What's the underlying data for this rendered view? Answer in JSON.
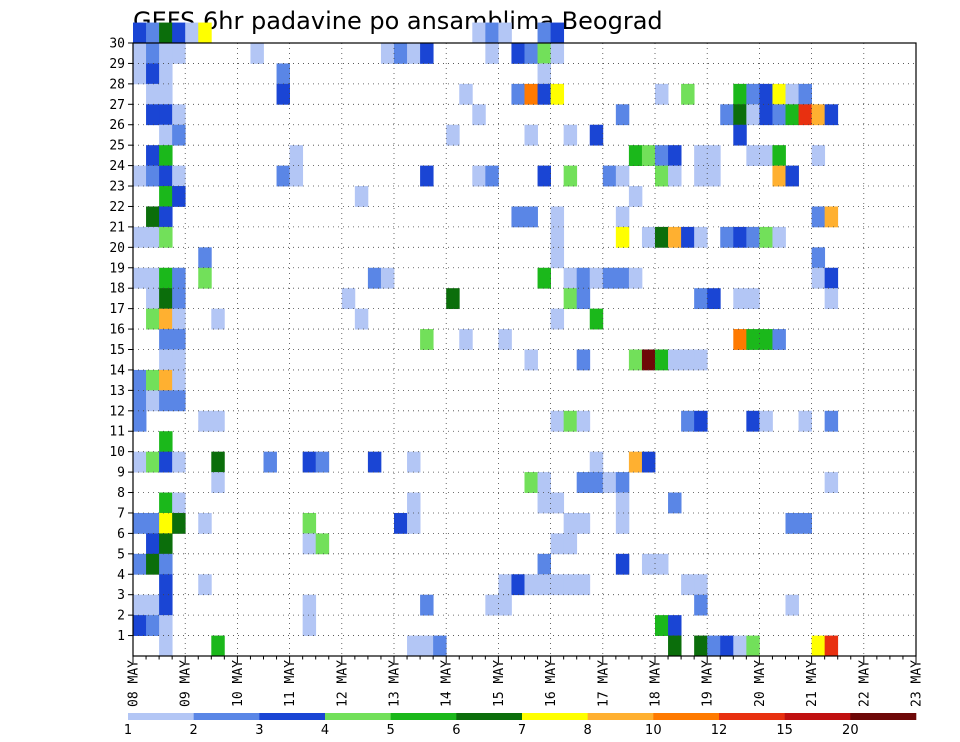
{
  "chart_data": {
    "type": "heatmap",
    "title": "GEFS 6hr padavine po ansamblima Beograd",
    "xlabel": "",
    "ylabel": "",
    "x_ticks": [
      "08 MAY",
      "09 MAY",
      "10 MAY",
      "11 MAY",
      "12 MAY",
      "13 MAY",
      "14 MAY",
      "15 MAY",
      "16 MAY",
      "17 MAY",
      "18 MAY",
      "19 MAY",
      "20 MAY",
      "21 MAY",
      "22 MAY",
      "23 MAY"
    ],
    "y_ticks": [
      "1",
      "2",
      "3",
      "4",
      "5",
      "6",
      "7",
      "8",
      "9",
      "10",
      "11",
      "12",
      "13",
      "14",
      "15",
      "16",
      "17",
      "18",
      "19",
      "20",
      "21",
      "22",
      "23",
      "24",
      "25",
      "26",
      "27",
      "28",
      "29",
      "30"
    ],
    "y_range": [
      0,
      30
    ],
    "n_time_steps": 60,
    "grid": true,
    "colorbar": {
      "levels": [
        "1",
        "2",
        "3",
        "4",
        "5",
        "6",
        "7",
        "8",
        "10",
        "12",
        "15",
        "20"
      ],
      "colors": [
        "#b3c6f5",
        "#5a86e6",
        "#1a45d4",
        "#72e05a",
        "#1bb81b",
        "#0b6e0b",
        "#ffff00",
        "#ffb030",
        "#ff7a00",
        "#e83010",
        "#c01010",
        "#6e0808"
      ]
    },
    "cells": [
      [
        30,
        0,
        2
      ],
      [
        30,
        1,
        1
      ],
      [
        30,
        2,
        5
      ],
      [
        30,
        3,
        2
      ],
      [
        30,
        4,
        0
      ],
      [
        30,
        5,
        6
      ],
      [
        30,
        26,
        0
      ],
      [
        30,
        27,
        1
      ],
      [
        30,
        28,
        0
      ],
      [
        30,
        31,
        1
      ],
      [
        30,
        32,
        2
      ],
      [
        29,
        0,
        0
      ],
      [
        29,
        1,
        1
      ],
      [
        29,
        2,
        0
      ],
      [
        29,
        3,
        0
      ],
      [
        29,
        9,
        0
      ],
      [
        29,
        19,
        0
      ],
      [
        29,
        20,
        1
      ],
      [
        29,
        21,
        0
      ],
      [
        29,
        22,
        2
      ],
      [
        29,
        27,
        0
      ],
      [
        29,
        29,
        2
      ],
      [
        29,
        30,
        1
      ],
      [
        29,
        31,
        3
      ],
      [
        29,
        32,
        0
      ],
      [
        28,
        0,
        0
      ],
      [
        28,
        1,
        2
      ],
      [
        28,
        2,
        0
      ],
      [
        28,
        11,
        1
      ],
      [
        28,
        31,
        0
      ],
      [
        27,
        1,
        0
      ],
      [
        27,
        2,
        0
      ],
      [
        27,
        11,
        2
      ],
      [
        27,
        25,
        0
      ],
      [
        27,
        29,
        1
      ],
      [
        27,
        30,
        8
      ],
      [
        27,
        31,
        2
      ],
      [
        27,
        32,
        6
      ],
      [
        27,
        40,
        0
      ],
      [
        27,
        42,
        3
      ],
      [
        27,
        46,
        4
      ],
      [
        27,
        47,
        1
      ],
      [
        27,
        48,
        2
      ],
      [
        27,
        49,
        6
      ],
      [
        27,
        50,
        0
      ],
      [
        27,
        51,
        1
      ],
      [
        26,
        1,
        2
      ],
      [
        26,
        2,
        2
      ],
      [
        26,
        3,
        0
      ],
      [
        26,
        26,
        0
      ],
      [
        26,
        37,
        1
      ],
      [
        26,
        45,
        1
      ],
      [
        26,
        46,
        5
      ],
      [
        26,
        47,
        0
      ],
      [
        26,
        48,
        2
      ],
      [
        26,
        49,
        1
      ],
      [
        26,
        50,
        4
      ],
      [
        26,
        51,
        9
      ],
      [
        26,
        52,
        7
      ],
      [
        26,
        53,
        2
      ],
      [
        25,
        2,
        0
      ],
      [
        25,
        3,
        1
      ],
      [
        25,
        24,
        0
      ],
      [
        25,
        30,
        0
      ],
      [
        25,
        33,
        0
      ],
      [
        25,
        35,
        2
      ],
      [
        25,
        46,
        2
      ],
      [
        24,
        1,
        2
      ],
      [
        24,
        2,
        4
      ],
      [
        24,
        12,
        0
      ],
      [
        24,
        38,
        4
      ],
      [
        24,
        39,
        3
      ],
      [
        24,
        40,
        1
      ],
      [
        24,
        41,
        2
      ],
      [
        24,
        43,
        0
      ],
      [
        24,
        44,
        0
      ],
      [
        24,
        47,
        0
      ],
      [
        24,
        48,
        0
      ],
      [
        24,
        49,
        4
      ],
      [
        24,
        52,
        0
      ],
      [
        23,
        0,
        0
      ],
      [
        23,
        1,
        1
      ],
      [
        23,
        2,
        2
      ],
      [
        23,
        3,
        0
      ],
      [
        23,
        11,
        1
      ],
      [
        23,
        12,
        0
      ],
      [
        23,
        22,
        2
      ],
      [
        23,
        26,
        0
      ],
      [
        23,
        27,
        1
      ],
      [
        23,
        31,
        2
      ],
      [
        23,
        33,
        3
      ],
      [
        23,
        36,
        1
      ],
      [
        23,
        37,
        0
      ],
      [
        23,
        40,
        3
      ],
      [
        23,
        41,
        0
      ],
      [
        23,
        43,
        0
      ],
      [
        23,
        44,
        0
      ],
      [
        23,
        49,
        7
      ],
      [
        23,
        50,
        2
      ],
      [
        22,
        2,
        4
      ],
      [
        22,
        3,
        2
      ],
      [
        22,
        17,
        0
      ],
      [
        22,
        38,
        0
      ],
      [
        21,
        1,
        5
      ],
      [
        21,
        2,
        2
      ],
      [
        21,
        29,
        1
      ],
      [
        21,
        30,
        1
      ],
      [
        21,
        32,
        0
      ],
      [
        21,
        37,
        0
      ],
      [
        21,
        52,
        1
      ],
      [
        21,
        53,
        7
      ],
      [
        20,
        0,
        0
      ],
      [
        20,
        1,
        0
      ],
      [
        20,
        2,
        3
      ],
      [
        20,
        32,
        0
      ],
      [
        20,
        37,
        6
      ],
      [
        20,
        39,
        0
      ],
      [
        20,
        40,
        5
      ],
      [
        20,
        41,
        7
      ],
      [
        20,
        42,
        2
      ],
      [
        20,
        43,
        0
      ],
      [
        20,
        45,
        1
      ],
      [
        20,
        46,
        2
      ],
      [
        20,
        47,
        1
      ],
      [
        20,
        48,
        3
      ],
      [
        20,
        49,
        0
      ],
      [
        19,
        5,
        1
      ],
      [
        19,
        32,
        0
      ],
      [
        19,
        52,
        1
      ],
      [
        18,
        0,
        0
      ],
      [
        18,
        1,
        0
      ],
      [
        18,
        2,
        4
      ],
      [
        18,
        3,
        1
      ],
      [
        18,
        5,
        3
      ],
      [
        18,
        18,
        1
      ],
      [
        18,
        19,
        0
      ],
      [
        18,
        31,
        4
      ],
      [
        18,
        33,
        0
      ],
      [
        18,
        34,
        1
      ],
      [
        18,
        35,
        0
      ],
      [
        18,
        36,
        1
      ],
      [
        18,
        37,
        1
      ],
      [
        18,
        38,
        0
      ],
      [
        18,
        52,
        0
      ],
      [
        18,
        53,
        2
      ],
      [
        17,
        1,
        0
      ],
      [
        17,
        2,
        5
      ],
      [
        17,
        3,
        1
      ],
      [
        17,
        16,
        0
      ],
      [
        17,
        24,
        5
      ],
      [
        17,
        33,
        3
      ],
      [
        17,
        34,
        1
      ],
      [
        17,
        43,
        1
      ],
      [
        17,
        44,
        2
      ],
      [
        17,
        46,
        0
      ],
      [
        17,
        47,
        0
      ],
      [
        17,
        53,
        0
      ],
      [
        16,
        1,
        3
      ],
      [
        16,
        2,
        7
      ],
      [
        16,
        3,
        0
      ],
      [
        16,
        6,
        0
      ],
      [
        16,
        17,
        0
      ],
      [
        16,
        32,
        0
      ],
      [
        16,
        35,
        4
      ],
      [
        15,
        2,
        1
      ],
      [
        15,
        3,
        1
      ],
      [
        15,
        22,
        3
      ],
      [
        15,
        25,
        0
      ],
      [
        15,
        28,
        0
      ],
      [
        15,
        46,
        8
      ],
      [
        15,
        47,
        4
      ],
      [
        15,
        48,
        4
      ],
      [
        15,
        49,
        1
      ],
      [
        14,
        2,
        0
      ],
      [
        14,
        3,
        0
      ],
      [
        14,
        30,
        0
      ],
      [
        14,
        34,
        1
      ],
      [
        14,
        38,
        3
      ],
      [
        14,
        39,
        11
      ],
      [
        14,
        40,
        4
      ],
      [
        14,
        41,
        0
      ],
      [
        14,
        42,
        0
      ],
      [
        14,
        43,
        0
      ],
      [
        13,
        0,
        1
      ],
      [
        13,
        1,
        3
      ],
      [
        13,
        2,
        7
      ],
      [
        13,
        3,
        0
      ],
      [
        12,
        0,
        1
      ],
      [
        12,
        1,
        0
      ],
      [
        12,
        2,
        1
      ],
      [
        12,
        3,
        1
      ],
      [
        11,
        0,
        1
      ],
      [
        11,
        5,
        0
      ],
      [
        11,
        6,
        0
      ],
      [
        11,
        32,
        0
      ],
      [
        11,
        33,
        3
      ],
      [
        11,
        34,
        0
      ],
      [
        11,
        42,
        1
      ],
      [
        11,
        43,
        2
      ],
      [
        11,
        47,
        2
      ],
      [
        11,
        48,
        0
      ],
      [
        11,
        51,
        0
      ],
      [
        11,
        53,
        1
      ],
      [
        10,
        2,
        4
      ],
      [
        9,
        0,
        0
      ],
      [
        9,
        1,
        3
      ],
      [
        9,
        2,
        2
      ],
      [
        9,
        3,
        0
      ],
      [
        9,
        6,
        5
      ],
      [
        9,
        10,
        1
      ],
      [
        9,
        13,
        2
      ],
      [
        9,
        14,
        1
      ],
      [
        9,
        18,
        2
      ],
      [
        9,
        21,
        0
      ],
      [
        9,
        35,
        0
      ],
      [
        9,
        38,
        7
      ],
      [
        9,
        39,
        2
      ],
      [
        8,
        6,
        0
      ],
      [
        8,
        30,
        3
      ],
      [
        8,
        31,
        0
      ],
      [
        8,
        34,
        1
      ],
      [
        8,
        35,
        1
      ],
      [
        8,
        36,
        0
      ],
      [
        8,
        37,
        1
      ],
      [
        8,
        53,
        0
      ],
      [
        7,
        2,
        4
      ],
      [
        7,
        3,
        0
      ],
      [
        7,
        21,
        0
      ],
      [
        7,
        31,
        0
      ],
      [
        7,
        32,
        0
      ],
      [
        7,
        37,
        0
      ],
      [
        7,
        41,
        1
      ],
      [
        6,
        0,
        1
      ],
      [
        6,
        1,
        1
      ],
      [
        6,
        2,
        6
      ],
      [
        6,
        3,
        5
      ],
      [
        6,
        5,
        0
      ],
      [
        6,
        13,
        3
      ],
      [
        6,
        20,
        2
      ],
      [
        6,
        21,
        0
      ],
      [
        6,
        33,
        0
      ],
      [
        6,
        34,
        0
      ],
      [
        6,
        37,
        0
      ],
      [
        6,
        50,
        1
      ],
      [
        6,
        51,
        1
      ],
      [
        5,
        1,
        2
      ],
      [
        5,
        2,
        5
      ],
      [
        5,
        13,
        0
      ],
      [
        5,
        14,
        3
      ],
      [
        5,
        32,
        0
      ],
      [
        5,
        33,
        0
      ],
      [
        4,
        0,
        1
      ],
      [
        4,
        1,
        5
      ],
      [
        4,
        2,
        1
      ],
      [
        4,
        31,
        1
      ],
      [
        4,
        37,
        2
      ],
      [
        4,
        39,
        0
      ],
      [
        4,
        40,
        0
      ],
      [
        3,
        2,
        2
      ],
      [
        3,
        5,
        0
      ],
      [
        3,
        28,
        0
      ],
      [
        3,
        29,
        2
      ],
      [
        3,
        30,
        0
      ],
      [
        3,
        31,
        0
      ],
      [
        3,
        32,
        0
      ],
      [
        3,
        33,
        0
      ],
      [
        3,
        34,
        0
      ],
      [
        3,
        42,
        0
      ],
      [
        3,
        43,
        0
      ],
      [
        2,
        0,
        0
      ],
      [
        2,
        1,
        0
      ],
      [
        2,
        2,
        2
      ],
      [
        2,
        13,
        0
      ],
      [
        2,
        22,
        1
      ],
      [
        2,
        27,
        0
      ],
      [
        2,
        28,
        0
      ],
      [
        2,
        43,
        1
      ],
      [
        2,
        50,
        0
      ],
      [
        1,
        0,
        2
      ],
      [
        1,
        1,
        1
      ],
      [
        1,
        2,
        0
      ],
      [
        1,
        13,
        0
      ],
      [
        1,
        40,
        4
      ],
      [
        1,
        41,
        2
      ],
      [
        0,
        2,
        0
      ],
      [
        0,
        6,
        4
      ],
      [
        0,
        21,
        0
      ],
      [
        0,
        22,
        0
      ],
      [
        0,
        23,
        1
      ],
      [
        0,
        41,
        5
      ],
      [
        0,
        43,
        5
      ],
      [
        0,
        44,
        1
      ],
      [
        0,
        45,
        2
      ],
      [
        0,
        46,
        0
      ],
      [
        0,
        47,
        3
      ],
      [
        0,
        52,
        6
      ],
      [
        0,
        53,
        9
      ]
    ]
  }
}
